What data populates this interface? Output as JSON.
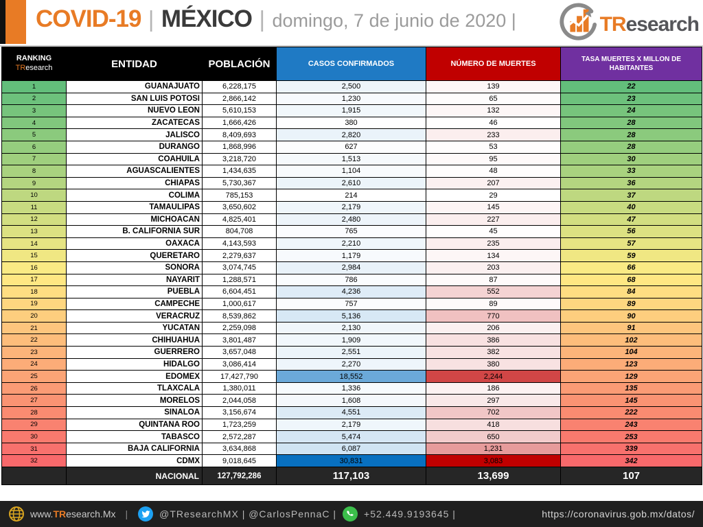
{
  "header": {
    "title_main": "COVID-19",
    "sep": "|",
    "title_country": "MÉXICO",
    "title_date": "domingo, 7 de junio de 2020 |",
    "logo_tr": "TR",
    "logo_rest": "esearch"
  },
  "table_headers": {
    "ranking_line1": "RANKING",
    "ranking_tr": "TR",
    "ranking_rest": "esearch",
    "entidad": "ENTIDAD",
    "poblacion": "POBLACIÓN",
    "casos": "CASOS CONFIRMADOS",
    "muertes": "NÚMERO DE MUERTES",
    "tasa": "TASA MUERTES X MILLON DE HABITANTES"
  },
  "chart_data": {
    "type": "table",
    "title": "COVID-19 México — domingo, 7 de junio de 2020",
    "columns": [
      "RANKING TResearch",
      "ENTIDAD",
      "POBLACIÓN",
      "CASOS CONFIRMADOS",
      "NÚMERO DE MUERTES",
      "TASA MUERTES X MILLON DE HABITANTES"
    ],
    "rows": [
      {
        "rank": "1",
        "entidad": "GUANAJUATO",
        "poblacion": "6,228,175",
        "casos": "2,500",
        "muertes": "139",
        "tasa": "22"
      },
      {
        "rank": "2",
        "entidad": "SAN LUIS POTOSI",
        "poblacion": "2,866,142",
        "casos": "1,230",
        "muertes": "65",
        "tasa": "23"
      },
      {
        "rank": "3",
        "entidad": "NUEVO LEON",
        "poblacion": "5,610,153",
        "casos": "1,915",
        "muertes": "132",
        "tasa": "24"
      },
      {
        "rank": "4",
        "entidad": "ZACATECAS",
        "poblacion": "1,666,426",
        "casos": "380",
        "muertes": "46",
        "tasa": "28"
      },
      {
        "rank": "5",
        "entidad": "JALISCO",
        "poblacion": "8,409,693",
        "casos": "2,820",
        "muertes": "233",
        "tasa": "28"
      },
      {
        "rank": "6",
        "entidad": "DURANGO",
        "poblacion": "1,868,996",
        "casos": "627",
        "muertes": "53",
        "tasa": "28"
      },
      {
        "rank": "7",
        "entidad": "COAHUILA",
        "poblacion": "3,218,720",
        "casos": "1,513",
        "muertes": "95",
        "tasa": "30"
      },
      {
        "rank": "8",
        "entidad": "AGUASCALIENTES",
        "poblacion": "1,434,635",
        "casos": "1,104",
        "muertes": "48",
        "tasa": "33"
      },
      {
        "rank": "9",
        "entidad": "CHIAPAS",
        "poblacion": "5,730,367",
        "casos": "2,610",
        "muertes": "207",
        "tasa": "36"
      },
      {
        "rank": "10",
        "entidad": "COLIMA",
        "poblacion": "785,153",
        "casos": "214",
        "muertes": "29",
        "tasa": "37"
      },
      {
        "rank": "11",
        "entidad": "TAMAULIPAS",
        "poblacion": "3,650,602",
        "casos": "2,179",
        "muertes": "145",
        "tasa": "40"
      },
      {
        "rank": "12",
        "entidad": "MICHOACAN",
        "poblacion": "4,825,401",
        "casos": "2,480",
        "muertes": "227",
        "tasa": "47"
      },
      {
        "rank": "13",
        "entidad": "B. CALIFORNIA SUR",
        "poblacion": "804,708",
        "casos": "765",
        "muertes": "45",
        "tasa": "56"
      },
      {
        "rank": "14",
        "entidad": "OAXACA",
        "poblacion": "4,143,593",
        "casos": "2,210",
        "muertes": "235",
        "tasa": "57"
      },
      {
        "rank": "15",
        "entidad": "QUERETARO",
        "poblacion": "2,279,637",
        "casos": "1,179",
        "muertes": "134",
        "tasa": "59"
      },
      {
        "rank": "16",
        "entidad": "SONORA",
        "poblacion": "3,074,745",
        "casos": "2,984",
        "muertes": "203",
        "tasa": "66"
      },
      {
        "rank": "17",
        "entidad": "NAYARIT",
        "poblacion": "1,288,571",
        "casos": "786",
        "muertes": "87",
        "tasa": "68"
      },
      {
        "rank": "18",
        "entidad": "PUEBLA",
        "poblacion": "6,604,451",
        "casos": "4,236",
        "muertes": "552",
        "tasa": "84"
      },
      {
        "rank": "19",
        "entidad": "CAMPECHE",
        "poblacion": "1,000,617",
        "casos": "757",
        "muertes": "89",
        "tasa": "89"
      },
      {
        "rank": "20",
        "entidad": "VERACRUZ",
        "poblacion": "8,539,862",
        "casos": "5,136",
        "muertes": "770",
        "tasa": "90"
      },
      {
        "rank": "21",
        "entidad": "YUCATAN",
        "poblacion": "2,259,098",
        "casos": "2,130",
        "muertes": "206",
        "tasa": "91"
      },
      {
        "rank": "22",
        "entidad": "CHIHUAHUA",
        "poblacion": "3,801,487",
        "casos": "1,909",
        "muertes": "386",
        "tasa": "102"
      },
      {
        "rank": "23",
        "entidad": "GUERRERO",
        "poblacion": "3,657,048",
        "casos": "2,551",
        "muertes": "382",
        "tasa": "104"
      },
      {
        "rank": "24",
        "entidad": "HIDALGO",
        "poblacion": "3,086,414",
        "casos": "2,270",
        "muertes": "380",
        "tasa": "123"
      },
      {
        "rank": "25",
        "entidad": "EDOMEX",
        "poblacion": "17,427,790",
        "casos": "18,552",
        "muertes": "2,244",
        "tasa": "129"
      },
      {
        "rank": "26",
        "entidad": "TLAXCALA",
        "poblacion": "1,380,011",
        "casos": "1,336",
        "muertes": "186",
        "tasa": "135"
      },
      {
        "rank": "27",
        "entidad": "MORELOS",
        "poblacion": "2,044,058",
        "casos": "1,608",
        "muertes": "297",
        "tasa": "145"
      },
      {
        "rank": "28",
        "entidad": "SINALOA",
        "poblacion": "3,156,674",
        "casos": "4,551",
        "muertes": "702",
        "tasa": "222"
      },
      {
        "rank": "29",
        "entidad": "QUINTANA ROO",
        "poblacion": "1,723,259",
        "casos": "2,179",
        "muertes": "418",
        "tasa": "243"
      },
      {
        "rank": "30",
        "entidad": "TABASCO",
        "poblacion": "2,572,287",
        "casos": "5,474",
        "muertes": "650",
        "tasa": "253"
      },
      {
        "rank": "31",
        "entidad": "BAJA CALIFORNIA",
        "poblacion": "3,634,868",
        "casos": "6,087",
        "muertes": "1,231",
        "tasa": "339"
      },
      {
        "rank": "32",
        "entidad": "CDMX",
        "poblacion": "9,018,645",
        "casos": "30,831",
        "muertes": "3,083",
        "tasa": "342"
      }
    ],
    "total_row": {
      "label": "NACIONAL",
      "poblacion": "127,792,286",
      "casos": "117,103",
      "muertes": "13,699",
      "tasa": "107"
    }
  },
  "colors": {
    "accent_orange": "#E87B25",
    "header_blue": "#1F7AC4",
    "header_red": "#C00000",
    "header_purple": "#7030A0",
    "heat_green": "#63BE7B",
    "heat_yellow": "#FFEB84",
    "heat_red": "#F8696B",
    "casos_blue": "#0870C0",
    "muertes_red": "#C00000",
    "casos_min": 214,
    "casos_max": 30831,
    "muertes_min": 29,
    "muertes_max": 3083
  },
  "footer": {
    "site_www": "www.",
    "site_tr": "TR",
    "site_rest": "esearch.Mx",
    "sep": "|",
    "handles": "@TResearchMX | @CarlosPennaC |",
    "phone": "+52.449.9193645 |",
    "url": "https://coronavirus.gob.mx/datos/"
  }
}
